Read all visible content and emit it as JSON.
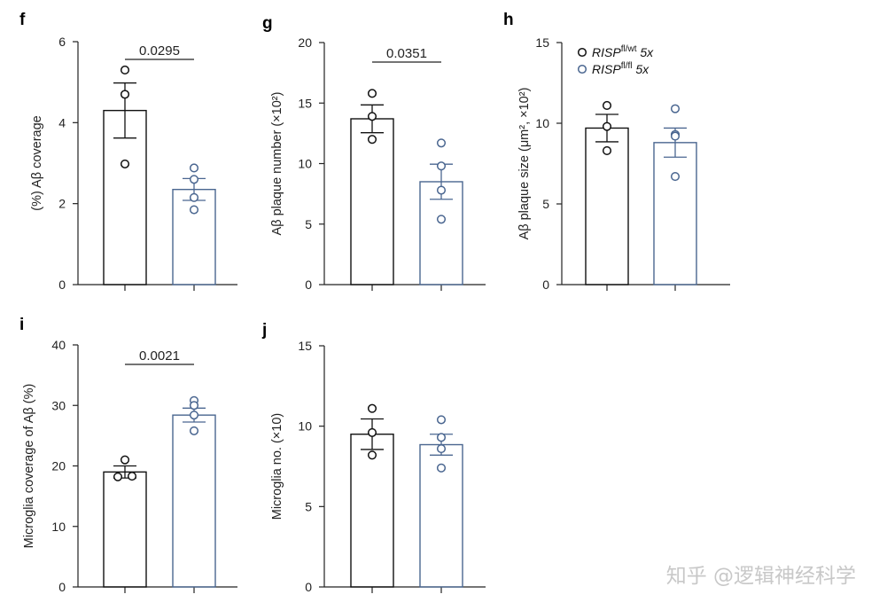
{
  "colors": {
    "genotype_a": "#111111",
    "genotype_b": "#4a6690",
    "axis": "#222222"
  },
  "legend": [
    {
      "label_main": "RISP",
      "label_sup": "fl/wt",
      "label_tail": " 5x",
      "color": "#111111"
    },
    {
      "label_main": "RISP",
      "label_sup": "fl/fl",
      "label_tail": " 5x",
      "color": "#4a6690"
    }
  ],
  "watermark": "知乎 @逻辑神经科学",
  "chart_data": [
    {
      "panel": "f",
      "type": "bar",
      "ylabel": "(%) Aβ coverage",
      "ylim": [
        0,
        6
      ],
      "yticks": [
        0,
        2,
        4,
        6
      ],
      "series": [
        {
          "mean": 4.3,
          "sem": 0.68,
          "points": [
            5.3,
            4.7,
            2.98
          ],
          "color": "#111111"
        },
        {
          "mean": 2.35,
          "sem": 0.27,
          "points": [
            2.88,
            2.6,
            2.15,
            1.85
          ],
          "color": "#4a6690"
        }
      ],
      "pvalue": "0.0295"
    },
    {
      "panel": "g",
      "type": "bar",
      "ylabel": "Aβ plaque  number (×10²)",
      "ylim": [
        0,
        20
      ],
      "yticks": [
        0,
        5,
        10,
        15,
        20
      ],
      "series": [
        {
          "mean": 13.7,
          "sem": 1.15,
          "points": [
            15.8,
            13.9,
            12.0
          ],
          "color": "#111111"
        },
        {
          "mean": 8.5,
          "sem": 1.45,
          "points": [
            11.7,
            9.8,
            7.8,
            5.4
          ],
          "color": "#4a6690"
        }
      ],
      "pvalue": "0.0351"
    },
    {
      "panel": "h",
      "type": "bar",
      "ylabel": "Aβ plaque size (μm², ×10²)",
      "ylim": [
        0,
        15
      ],
      "yticks": [
        0,
        5,
        10,
        15
      ],
      "series": [
        {
          "mean": 9.7,
          "sem": 0.85,
          "points": [
            11.1,
            9.8,
            8.3
          ],
          "color": "#111111"
        },
        {
          "mean": 8.8,
          "sem": 0.9,
          "points": [
            10.9,
            9.3,
            9.2,
            6.7
          ],
          "color": "#4a6690"
        }
      ],
      "pvalue": ""
    },
    {
      "panel": "i",
      "type": "bar",
      "ylabel": "Microglia coverage of Aβ (%)",
      "ylim": [
        0,
        40
      ],
      "yticks": [
        0,
        10,
        20,
        30,
        40
      ],
      "series": [
        {
          "mean": 19.0,
          "sem": 1.0,
          "points": [
            21.0,
            18.2,
            18.3
          ],
          "color": "#111111"
        },
        {
          "mean": 28.4,
          "sem": 1.15,
          "points": [
            30.8,
            30.0,
            28.4,
            25.8
          ],
          "color": "#4a6690"
        }
      ],
      "pvalue": "0.0021"
    },
    {
      "panel": "j",
      "type": "bar",
      "ylabel": "Microglia no. (×10)",
      "ylim": [
        0,
        15
      ],
      "yticks": [
        0,
        5,
        10,
        15
      ],
      "series": [
        {
          "mean": 9.5,
          "sem": 0.95,
          "points": [
            11.1,
            9.6,
            8.2
          ],
          "color": "#111111"
        },
        {
          "mean": 8.85,
          "sem": 0.65,
          "points": [
            10.4,
            9.3,
            8.6,
            7.4
          ],
          "color": "#4a6690"
        }
      ],
      "pvalue": ""
    }
  ]
}
